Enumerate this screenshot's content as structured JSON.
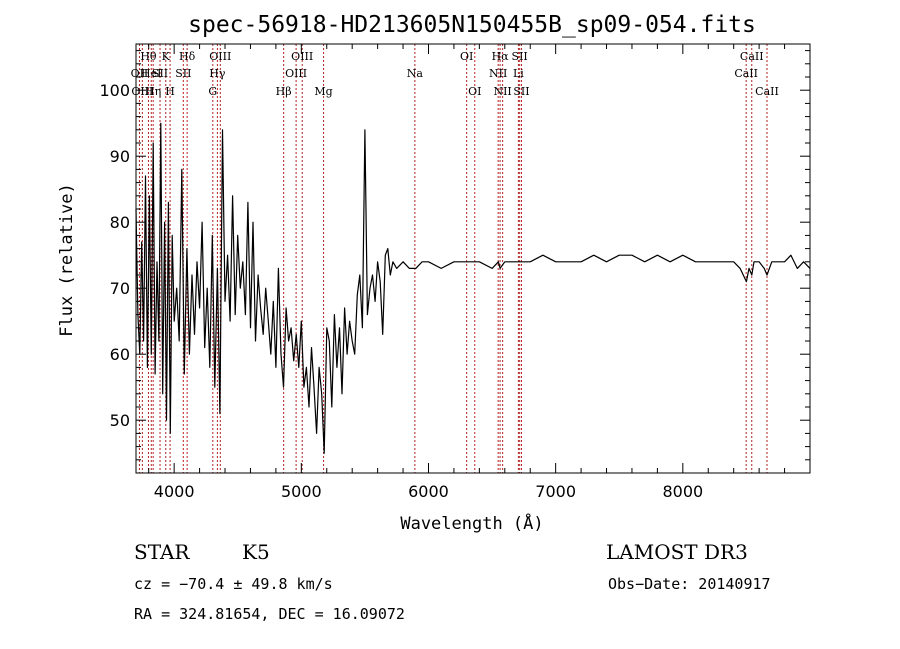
{
  "chart_data": {
    "type": "line",
    "title": "spec-56918-HD213605N150455B_sp09-054.fits",
    "xlabel": "Wavelength (Å)",
    "ylabel": "Flux (relative)",
    "xlim": [
      3700,
      9000
    ],
    "ylim": [
      42,
      107
    ],
    "xticks": [
      4000,
      5000,
      6000,
      7000,
      8000
    ],
    "yticks": [
      50,
      60,
      70,
      80,
      90,
      100
    ],
    "grid": false,
    "series": [
      {
        "x": [
          3700,
          3715,
          3730,
          3745,
          3760,
          3775,
          3790,
          3805,
          3820,
          3835,
          3850,
          3865,
          3880,
          3895,
          3910,
          3925,
          3940,
          3955,
          3970,
          3985,
          4000,
          4020,
          4040,
          4060,
          4080,
          4100,
          4120,
          4140,
          4160,
          4180,
          4200,
          4220,
          4240,
          4260,
          4280,
          4300,
          4320,
          4340,
          4360,
          4380,
          4400,
          4420,
          4440,
          4460,
          4480,
          4500,
          4520,
          4540,
          4560,
          4580,
          4600,
          4620,
          4640,
          4660,
          4680,
          4700,
          4720,
          4740,
          4760,
          4780,
          4800,
          4820,
          4840,
          4860,
          4880,
          4900,
          4920,
          4940,
          4960,
          4980,
          5000,
          5020,
          5040,
          5060,
          5080,
          5100,
          5120,
          5140,
          5160,
          5180,
          5200,
          5220,
          5240,
          5260,
          5280,
          5300,
          5320,
          5340,
          5360,
          5380,
          5400,
          5420,
          5440,
          5460,
          5480,
          5500,
          5520,
          5540,
          5560,
          5580,
          5600,
          5620,
          5640,
          5660,
          5680,
          5700,
          5720,
          5750,
          5800,
          5850,
          5900,
          5950,
          6000,
          6100,
          6200,
          6300,
          6400,
          6500,
          6550,
          6563,
          6600,
          6700,
          6800,
          6900,
          7000,
          7100,
          7200,
          7300,
          7400,
          7500,
          7600,
          7700,
          7800,
          7900,
          8000,
          8100,
          8200,
          8300,
          8400,
          8450,
          8500,
          8520,
          8542,
          8560,
          8600,
          8640,
          8662,
          8700,
          8760,
          8800,
          8850,
          8900,
          8950,
          9000
        ],
        "y": [
          82,
          66,
          60,
          77,
          62,
          87,
          58,
          84,
          60,
          92,
          57,
          74,
          62,
          95,
          54,
          80,
          50,
          83,
          48,
          78,
          65,
          70,
          62,
          88,
          57,
          76,
          60,
          72,
          63,
          74,
          67,
          80,
          61,
          70,
          58,
          78,
          55,
          73,
          51,
          94,
          68,
          75,
          65,
          84,
          66,
          78,
          70,
          74,
          66,
          83,
          64,
          80,
          62,
          72,
          67,
          63,
          70,
          65,
          60,
          68,
          58,
          73,
          60,
          55,
          67,
          62,
          64,
          59,
          63,
          58,
          65,
          55,
          58,
          52,
          61,
          55,
          48,
          58,
          54,
          45,
          64,
          62,
          52,
          66,
          58,
          64,
          54,
          67,
          60,
          65,
          62,
          60,
          69,
          72,
          64,
          94,
          66,
          70,
          72,
          68,
          74,
          71,
          63,
          75,
          76,
          72,
          74,
          73,
          74,
          73,
          73,
          74,
          74,
          73,
          74,
          74,
          74,
          73,
          74,
          73,
          74,
          74,
          74,
          75,
          74,
          74,
          74,
          75,
          74,
          75,
          75,
          74,
          75,
          74,
          75,
          74,
          74,
          74,
          74,
          73,
          71,
          73,
          72,
          74,
          74,
          73,
          72,
          74,
          74,
          74,
          75,
          73,
          74,
          73
        ]
      }
    ],
    "lines": [
      {
        "wl": 3727,
        "label": "OII",
        "tier": 1
      },
      {
        "wl": 3750,
        "label": "OIII",
        "tier": 2
      },
      {
        "wl": 3798,
        "label": "Hθ",
        "tier": 0
      },
      {
        "wl": 3820,
        "label": "HeI",
        "tier": 1
      },
      {
        "wl": 3835,
        "label": "Hη",
        "tier": 2
      },
      {
        "wl": 3889,
        "label": "SII",
        "tier": 1
      },
      {
        "wl": 3934,
        "label": "K",
        "tier": 0
      },
      {
        "wl": 3968,
        "label": "H",
        "tier": 2
      },
      {
        "wl": 4102,
        "label": "Hδ",
        "tier": 0
      },
      {
        "wl": 4072,
        "label": "SII",
        "tier": 1
      },
      {
        "wl": 4304,
        "label": "G",
        "tier": 2
      },
      {
        "wl": 4340,
        "label": "Hγ",
        "tier": 1
      },
      {
        "wl": 4363,
        "label": "OIII",
        "tier": 0
      },
      {
        "wl": 4861,
        "label": "Hβ",
        "tier": 2
      },
      {
        "wl": 4959,
        "label": "OIII",
        "tier": 1
      },
      {
        "wl": 5007,
        "label": "OIII",
        "tier": 0
      },
      {
        "wl": 5175,
        "label": "Mg",
        "tier": 2
      },
      {
        "wl": 5893,
        "label": "Na",
        "tier": 1
      },
      {
        "wl": 6300,
        "label": "OI",
        "tier": 0
      },
      {
        "wl": 6364,
        "label": "OI",
        "tier": 2
      },
      {
        "wl": 6548,
        "label": "NII",
        "tier": 1
      },
      {
        "wl": 6563,
        "label": "Hα",
        "tier": 0
      },
      {
        "wl": 6583,
        "label": "NII",
        "tier": 2
      },
      {
        "wl": 6707,
        "label": "Li",
        "tier": 1
      },
      {
        "wl": 6717,
        "label": "SII",
        "tier": 0
      },
      {
        "wl": 6731,
        "label": "SII",
        "tier": 2
      },
      {
        "wl": 8498,
        "label": "CaII",
        "tier": 1
      },
      {
        "wl": 8542,
        "label": "CaII",
        "tier": 0
      },
      {
        "wl": 8662,
        "label": "CaII",
        "tier": 2
      }
    ]
  },
  "footer": {
    "class_label": "STAR",
    "subclass": "K5",
    "survey": "LAMOST DR3",
    "redshift": "cz = −70.4 ± 49.8 km/s",
    "obs_date": "Obs−Date: 20140917",
    "coords": "RA = 324.81654, DEC =  16.09072"
  },
  "colors": {
    "spectrum": "#000000",
    "line_markers": "#b22222"
  }
}
